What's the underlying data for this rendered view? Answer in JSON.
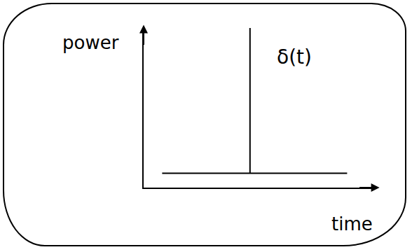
{
  "chart_data": {
    "type": "line",
    "x_label": "time",
    "y_label": "power",
    "annotations": [
      {
        "text": "δ(t)"
      }
    ],
    "series": [
      {
        "x": [
          0.8,
          4.6,
          4.6,
          4.6,
          8.8
        ],
        "values": [
          0.9,
          0.9,
          10,
          0.9,
          0.9
        ],
        "color": "#000000"
      }
    ],
    "xlim": [
      0,
      10
    ],
    "ylim": [
      0,
      10
    ],
    "xticks": [],
    "yticks": [],
    "tick_labels": false,
    "grid": false
  }
}
